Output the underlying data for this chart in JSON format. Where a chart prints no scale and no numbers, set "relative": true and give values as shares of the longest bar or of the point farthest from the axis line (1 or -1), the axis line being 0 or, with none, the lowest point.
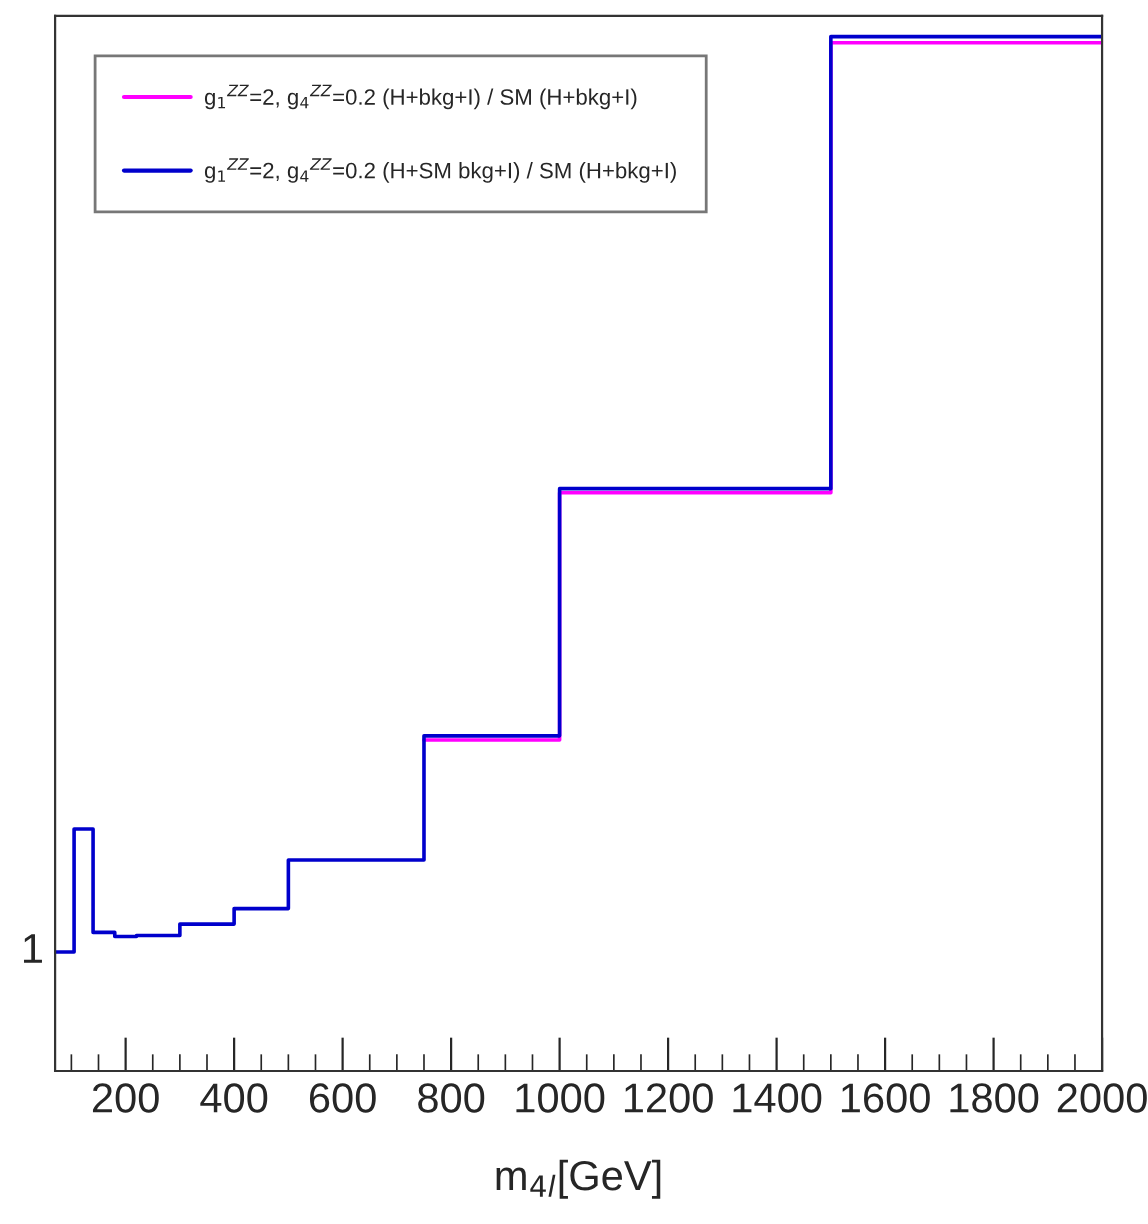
{
  "chart_data": {
    "type": "step",
    "relative": true,
    "xlabel": "m$_{4l}$[GeV]",
    "x": [
      70,
      105,
      140,
      180,
      220,
      300,
      400,
      500,
      750,
      1000,
      1500,
      2000
    ],
    "series": [
      {
        "name": "g$_{1}$$^{ZZ}$=2, g$_{4}$$^{ZZ}$=0.2 (H+bkg+I) / SM (H+bkg+I)",
        "color": "#ff00ff",
        "values": [
          null,
          null,
          null,
          null,
          null,
          null,
          null,
          null,
          0.32,
          0.559,
          0.994,
          0.994
        ]
      },
      {
        "name": "g$_{1}$$^{ZZ}$=2, g$_{4}$$^{ZZ}$=0.2 (H+SM bkg+I) / SM (H+bkg+I)",
        "color": "#0000cc",
        "values": [
          0.115,
          0.234,
          0.134,
          0.13,
          0.131,
          0.142,
          0.157,
          0.204,
          0.324,
          0.563,
          1,
          1
        ]
      }
    ],
    "xlim": [
      70,
      2000
    ],
    "xticks": [
      200,
      400,
      600,
      800,
      1000,
      1200,
      1400,
      1600,
      1800,
      2000
    ],
    "annotations": [
      "1"
    ],
    "legend": "top left",
    "grid": false
  }
}
